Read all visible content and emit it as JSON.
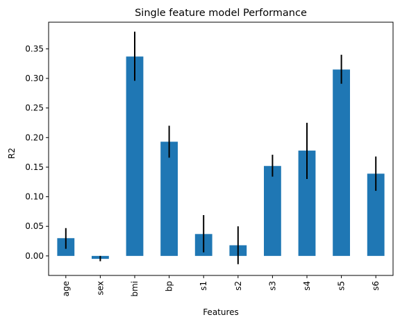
{
  "chart_data": {
    "type": "bar",
    "title": "Single feature model Performance",
    "xlabel": "Features",
    "ylabel": "R2",
    "categories": [
      "age",
      "sex",
      "bmi",
      "bp",
      "s1",
      "s2",
      "s3",
      "s4",
      "s5",
      "s6"
    ],
    "values": [
      0.03,
      -0.005,
      0.337,
      0.193,
      0.037,
      0.018,
      0.152,
      0.178,
      0.315,
      0.139
    ],
    "error_low": [
      0.012,
      -0.009,
      0.296,
      0.166,
      0.006,
      -0.014,
      0.134,
      0.13,
      0.291,
      0.11
    ],
    "error_high": [
      0.047,
      0.0,
      0.379,
      0.22,
      0.069,
      0.05,
      0.171,
      0.225,
      0.34,
      0.168
    ],
    "ylim": [
      -0.033,
      0.395
    ],
    "yticks": [
      0.0,
      0.05,
      0.1,
      0.15,
      0.2,
      0.25,
      0.3,
      0.35
    ],
    "ytick_labels": [
      "0.00",
      "0.05",
      "0.10",
      "0.15",
      "0.20",
      "0.25",
      "0.30",
      "0.35"
    ],
    "grid": false,
    "legend": "none",
    "colors": {
      "bar": "#1f77b4",
      "errorbar": "#000000",
      "axes": "#000000"
    }
  }
}
